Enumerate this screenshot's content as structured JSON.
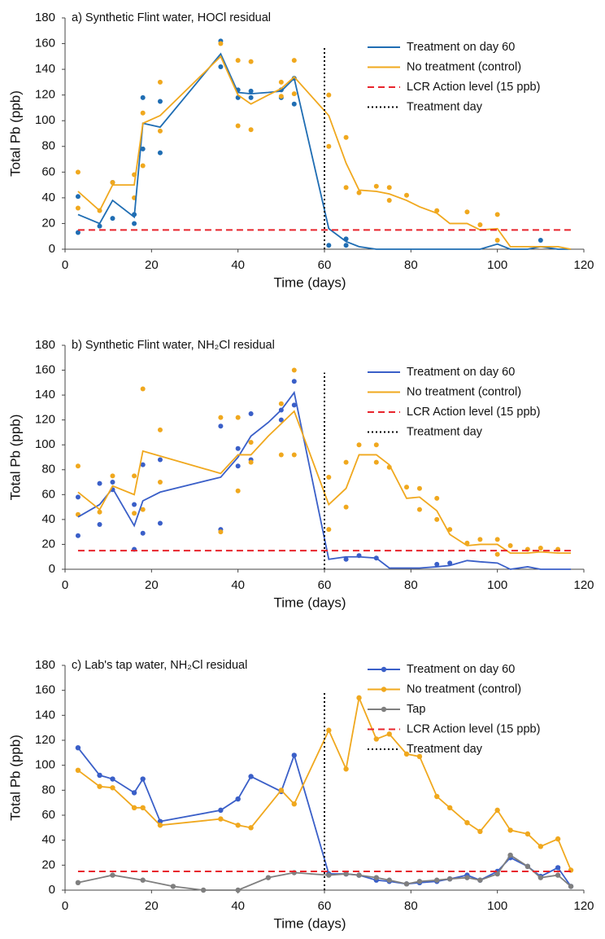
{
  "chart_data": [
    {
      "type": "line",
      "title": "a) Synthetic Flint water, HOCl residual",
      "xlabel": "Time (days)",
      "ylabel": "Total Pb (ppb)",
      "xlim": [
        0,
        120
      ],
      "xticks": [
        0,
        20,
        40,
        60,
        80,
        100,
        120
      ],
      "ylim": [
        0,
        180
      ],
      "yticks": [
        0,
        20,
        40,
        60,
        80,
        100,
        120,
        140,
        160,
        180
      ],
      "series": [
        {
          "name": "Treatment on day 60",
          "color": "#1f6db3",
          "style": "solid",
          "x": [
            3,
            8,
            11,
            16,
            18,
            22,
            36,
            40,
            43,
            47,
            50,
            53,
            61,
            65,
            68,
            72,
            75,
            79,
            82,
            86,
            89,
            93,
            96,
            100,
            103,
            107,
            110,
            114,
            117
          ],
          "values": [
            27,
            20,
            38,
            25,
            98,
            95,
            152,
            122,
            121,
            122,
            123,
            133,
            16,
            6,
            2,
            0,
            0,
            0,
            0,
            0,
            0,
            0,
            0,
            4,
            0,
            0,
            2,
            0,
            0
          ]
        },
        {
          "name": "No treatment (control)",
          "color": "#f0a81e",
          "style": "solid",
          "x": [
            3,
            8,
            11,
            16,
            18,
            22,
            36,
            40,
            43,
            47,
            50,
            53,
            61,
            65,
            68,
            72,
            75,
            79,
            82,
            86,
            89,
            93,
            96,
            100,
            103,
            107,
            110,
            114,
            117
          ],
          "values": [
            45,
            30,
            50,
            50,
            98,
            104,
            150,
            120,
            113,
            120,
            125,
            134,
            104,
            67,
            46,
            45,
            43,
            38,
            33,
            28,
            20,
            20,
            15,
            16,
            2,
            2,
            2,
            2,
            0
          ]
        },
        {
          "name": "LCR Action level (15 ppb)",
          "color": "#e8242c",
          "style": "dashed",
          "x": [
            3,
            117
          ],
          "values": [
            15,
            15
          ]
        },
        {
          "name": "Treatment day",
          "color": "#000000",
          "style": "dotted",
          "x": [
            60,
            60
          ],
          "values": [
            0,
            158
          ]
        }
      ],
      "markers": [
        {
          "color": "#1f6db3",
          "x": [
            3,
            3,
            8,
            11,
            11,
            16,
            16,
            18,
            18,
            22,
            22,
            36,
            36,
            40,
            40,
            43,
            43,
            50,
            50,
            53,
            53,
            61,
            65,
            65,
            110
          ],
          "values": [
            41,
            13,
            18,
            24,
            52,
            20,
            27,
            78,
            118,
            75,
            115,
            142,
            162,
            118,
            124,
            118,
            123,
            118,
            124,
            113,
            133,
            3,
            3,
            8,
            7
          ]
        },
        {
          "color": "#f0a81e",
          "x": [
            3,
            3,
            8,
            11,
            16,
            16,
            18,
            18,
            22,
            22,
            36,
            40,
            40,
            43,
            43,
            50,
            50,
            53,
            53,
            61,
            61,
            65,
            65,
            68,
            72,
            75,
            75,
            79,
            86,
            93,
            96,
            100,
            100
          ],
          "values": [
            60,
            32,
            30,
            52,
            40,
            58,
            65,
            106,
            92,
            130,
            160,
            96,
            147,
            93,
            146,
            119,
            130,
            121,
            147,
            80,
            120,
            87,
            48,
            44,
            49,
            48,
            38,
            42,
            30,
            29,
            19,
            27,
            7
          ]
        }
      ]
    },
    {
      "type": "line",
      "title": "b) Synthetic Flint water, NH₂Cl residual",
      "xlabel": "Time (days)",
      "ylabel": "Total Pb (ppb)",
      "xlim": [
        0,
        120
      ],
      "xticks": [
        0,
        20,
        40,
        60,
        80,
        100,
        120
      ],
      "ylim": [
        0,
        180
      ],
      "yticks": [
        0,
        20,
        40,
        60,
        80,
        100,
        120,
        140,
        160,
        180
      ],
      "series": [
        {
          "name": "Treatment on day 60",
          "color": "#3a5fc8",
          "style": "solid",
          "x": [
            3,
            8,
            11,
            16,
            18,
            22,
            36,
            40,
            43,
            47,
            50,
            53,
            61,
            65,
            68,
            72,
            75,
            79,
            82,
            86,
            89,
            93,
            96,
            100,
            103,
            107,
            110,
            114,
            117
          ],
          "values": [
            42,
            52,
            65,
            35,
            55,
            62,
            74,
            90,
            107,
            118,
            128,
            142,
            8,
            10,
            10,
            9,
            1,
            1,
            1,
            2,
            3,
            7,
            6,
            5,
            0,
            2,
            0,
            0,
            0
          ]
        },
        {
          "name": "No treatment (control)",
          "color": "#f0a81e",
          "style": "solid",
          "x": [
            3,
            8,
            11,
            16,
            18,
            22,
            36,
            40,
            43,
            47,
            50,
            53,
            61,
            65,
            68,
            72,
            75,
            79,
            82,
            86,
            89,
            93,
            96,
            100,
            103,
            107,
            110,
            114,
            117
          ],
          "values": [
            62,
            48,
            67,
            60,
            95,
            91,
            77,
            92,
            92,
            107,
            117,
            127,
            52,
            65,
            92,
            92,
            84,
            57,
            58,
            47,
            28,
            19,
            20,
            20,
            13,
            13,
            14,
            13,
            13
          ]
        },
        {
          "name": "LCR Action level (15 ppb)",
          "color": "#e8242c",
          "style": "dashed",
          "x": [
            3,
            117
          ],
          "values": [
            15,
            15
          ]
        },
        {
          "name": "Treatment day",
          "color": "#000000",
          "style": "dotted",
          "x": [
            60,
            60
          ],
          "values": [
            0,
            158
          ]
        }
      ],
      "markers": [
        {
          "color": "#3a5fc8",
          "x": [
            3,
            3,
            8,
            8,
            11,
            11,
            16,
            16,
            18,
            18,
            22,
            22,
            36,
            36,
            40,
            40,
            43,
            43,
            50,
            50,
            53,
            53,
            65,
            68,
            72,
            86,
            89
          ],
          "values": [
            58,
            27,
            69,
            36,
            70,
            64,
            52,
            16,
            84,
            29,
            88,
            37,
            115,
            32,
            97,
            83,
            125,
            88,
            128,
            120,
            151,
            132,
            8,
            11,
            9,
            4,
            5
          ]
        },
        {
          "color": "#f0a81e",
          "x": [
            3,
            3,
            8,
            11,
            16,
            16,
            18,
            18,
            22,
            22,
            36,
            36,
            40,
            40,
            43,
            43,
            50,
            50,
            53,
            53,
            61,
            61,
            65,
            65,
            68,
            72,
            72,
            75,
            79,
            82,
            82,
            86,
            86,
            89,
            93,
            96,
            100,
            100,
            103,
            107,
            110,
            114
          ],
          "values": [
            83,
            44,
            46,
            75,
            75,
            45,
            145,
            48,
            112,
            70,
            122,
            30,
            122,
            63,
            102,
            86,
            133,
            92,
            160,
            92,
            32,
            74,
            86,
            50,
            100,
            100,
            86,
            82,
            66,
            65,
            48,
            57,
            40,
            32,
            21,
            24,
            24,
            12,
            19,
            16,
            17,
            16
          ]
        }
      ]
    },
    {
      "type": "line",
      "title": "c) Lab's tap water, NH₂Cl residual",
      "xlabel": "Time (days)",
      "ylabel": "Total Pb (ppb)",
      "xlim": [
        0,
        120
      ],
      "xticks": [
        0,
        20,
        40,
        60,
        80,
        100,
        120
      ],
      "ylim": [
        0,
        180
      ],
      "yticks": [
        0,
        20,
        40,
        60,
        80,
        100,
        120,
        140,
        160,
        180
      ],
      "series": [
        {
          "name": "Treatment on day 60",
          "color": "#3a5fc8",
          "style": "solid",
          "marker": true,
          "x": [
            3,
            8,
            11,
            16,
            18,
            22,
            36,
            40,
            43,
            50,
            53,
            61,
            65,
            68,
            72,
            75,
            79,
            82,
            86,
            89,
            93,
            96,
            100,
            103,
            107,
            110,
            114,
            117
          ],
          "values": [
            114,
            92,
            89,
            78,
            89,
            55,
            64,
            73,
            91,
            79,
            108,
            13,
            13,
            12,
            8,
            7,
            5,
            6,
            7,
            9,
            12,
            8,
            15,
            26,
            19,
            11,
            18,
            3
          ]
        },
        {
          "name": "No treatment (control)",
          "color": "#f0a81e",
          "style": "solid",
          "marker": true,
          "x": [
            3,
            8,
            11,
            16,
            18,
            22,
            36,
            40,
            43,
            50,
            53,
            61,
            65,
            68,
            72,
            75,
            79,
            82,
            86,
            89,
            93,
            96,
            100,
            103,
            107,
            110,
            114,
            117
          ],
          "values": [
            96,
            83,
            82,
            66,
            66,
            52,
            57,
            52,
            50,
            80,
            69,
            128,
            97,
            154,
            121,
            125,
            109,
            107,
            75,
            66,
            54,
            47,
            64,
            48,
            45,
            35,
            41,
            16
          ]
        },
        {
          "name": "Tap",
          "color": "#7f7f7f",
          "style": "solid",
          "marker": true,
          "x": [
            3,
            11,
            18,
            25,
            32,
            40,
            47,
            53,
            61,
            65,
            68,
            72,
            75,
            79,
            82,
            86,
            89,
            93,
            96,
            100,
            103,
            107,
            110,
            114,
            117
          ],
          "values": [
            6,
            12,
            8,
            3,
            0,
            0,
            10,
            14,
            12,
            13,
            12,
            10,
            8,
            5,
            7,
            8,
            9,
            10,
            8,
            13,
            28,
            19,
            10,
            12,
            3
          ]
        },
        {
          "name": "LCR Action level (15 ppb)",
          "color": "#e8242c",
          "style": "dashed",
          "x": [
            3,
            117
          ],
          "values": [
            15,
            15
          ]
        },
        {
          "name": "Treatment day",
          "color": "#000000",
          "style": "dotted",
          "x": [
            60,
            60
          ],
          "values": [
            0,
            158
          ]
        }
      ],
      "markers": []
    }
  ]
}
